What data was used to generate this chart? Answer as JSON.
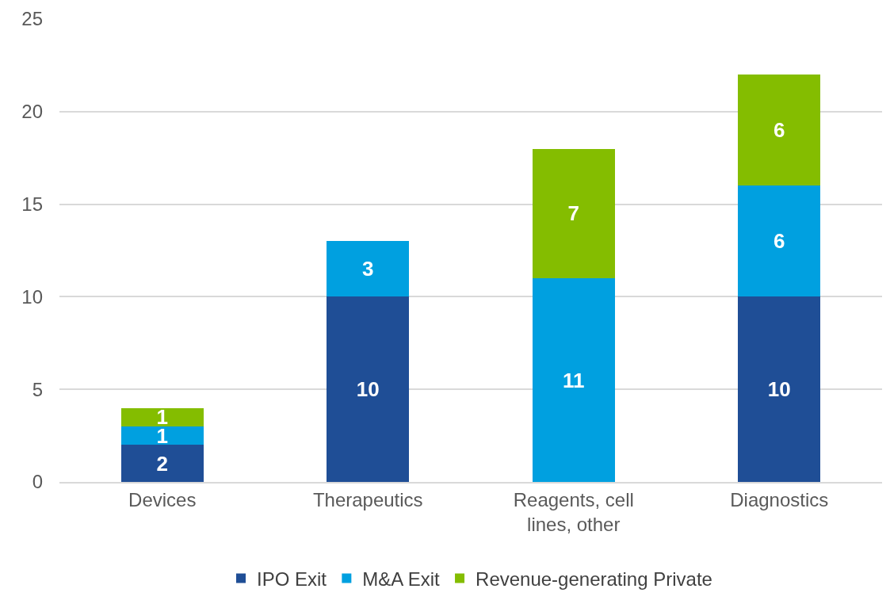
{
  "chart_data": {
    "type": "bar",
    "stacked": true,
    "categories": [
      "Devices",
      "Therapeutics",
      "Reagents, cell lines, other",
      "Diagnostics"
    ],
    "series": [
      {
        "name": "IPO Exit",
        "color": "#1f4e96",
        "values": [
          2,
          10,
          null,
          10
        ]
      },
      {
        "name": "M&A Exit",
        "color": "#00a0e0",
        "values": [
          1,
          3,
          11,
          6
        ]
      },
      {
        "name": "Revenue-generating Private",
        "color": "#84bd00",
        "values": [
          1,
          null,
          7,
          6
        ]
      }
    ],
    "ylim": [
      0,
      25
    ],
    "yticks": [
      0,
      5,
      10,
      15,
      20,
      25
    ],
    "grid": "y",
    "legend": "bottom",
    "data_labels": true
  }
}
